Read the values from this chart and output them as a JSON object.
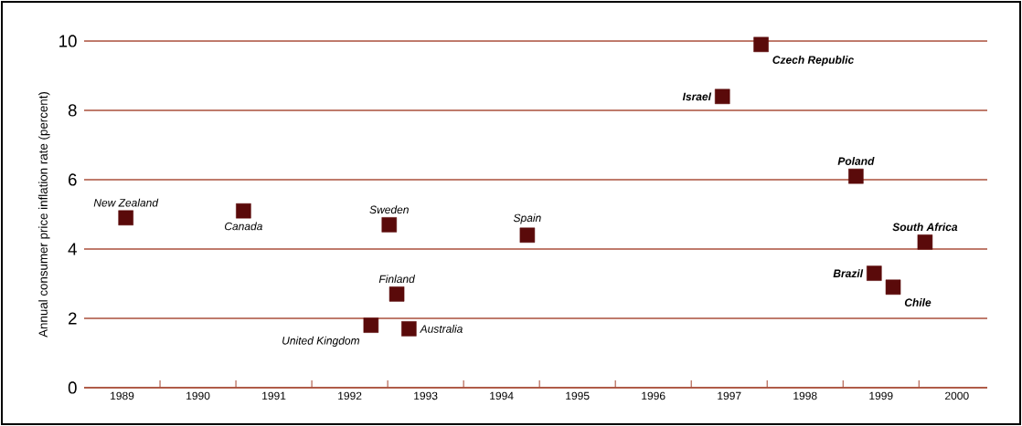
{
  "chart_data": {
    "type": "scatter",
    "ylabel": "Annual consumer price inflation rate (percent)",
    "x": [
      1989.55,
      1991.1,
      1993.02,
      1994.84,
      1993.12,
      1992.78,
      1993.28,
      1997.41,
      1997.92,
      1999.17,
      2000.08,
      1999.41,
      1999.66
    ],
    "values": [
      4.9,
      5.1,
      4.7,
      4.4,
      2.7,
      1.8,
      1.7,
      8.4,
      9.9,
      6.1,
      4.2,
      3.3,
      2.9
    ],
    "color": "#5a0a0a",
    "marker": "square",
    "grid": "y",
    "xlim": [
      1989,
      2000.9
    ],
    "ylim": [
      0,
      10
    ],
    "xticks": [
      {
        "value": 1989.5,
        "label": "1989"
      },
      {
        "value": 1990,
        "label": null
      },
      {
        "value": 1990.5,
        "label": "1990"
      },
      {
        "value": 1991,
        "label": null
      },
      {
        "value": 1991.5,
        "label": "1991"
      },
      {
        "value": 1992,
        "label": null
      },
      {
        "value": 1992.5,
        "label": "1992"
      },
      {
        "value": 1993,
        "label": null
      },
      {
        "value": 1993.5,
        "label": "1993"
      },
      {
        "value": 1994,
        "label": null
      },
      {
        "value": 1994.5,
        "label": "1994"
      },
      {
        "value": 1995,
        "label": null
      },
      {
        "value": 1995.5,
        "label": "1995"
      },
      {
        "value": 1996,
        "label": null
      },
      {
        "value": 1996.5,
        "label": "1996"
      },
      {
        "value": 1997,
        "label": null
      },
      {
        "value": 1997.5,
        "label": "1997"
      },
      {
        "value": 1998,
        "label": null
      },
      {
        "value": 1998.5,
        "label": "1998"
      },
      {
        "value": 1999,
        "label": null
      },
      {
        "value": 1999.5,
        "label": "1999"
      },
      {
        "value": 2000,
        "label": null
      },
      {
        "value": 2000.5,
        "label": "2000"
      }
    ],
    "yticks": [
      0,
      2,
      4,
      6,
      8,
      10
    ],
    "annotations": [
      {
        "text": "New Zealand",
        "x": 1989.55,
        "y": 4.9
      },
      {
        "text": "Canada",
        "x": 1991.1,
        "y": 5.1
      },
      {
        "text": "Sweden",
        "x": 1993.02,
        "y": 4.7
      },
      {
        "text": "Spain",
        "x": 1994.84,
        "y": 4.4
      },
      {
        "text": "Finland",
        "x": 1993.12,
        "y": 2.7
      },
      {
        "text": "United Kingdom",
        "x": 1992.78,
        "y": 1.8
      },
      {
        "text": "Australia",
        "x": 1993.28,
        "y": 1.7
      },
      {
        "text": "Israel",
        "x": 1997.41,
        "y": 8.4
      },
      {
        "text": "Czech Republic",
        "x": 1997.92,
        "y": 9.9
      },
      {
        "text": "Poland",
        "x": 1999.17,
        "y": 6.1
      },
      {
        "text": "South Africa",
        "x": 2000.08,
        "y": 4.2
      },
      {
        "text": "Brazil",
        "x": 1999.41,
        "y": 3.3
      },
      {
        "text": "Chile",
        "x": 1999.66,
        "y": 2.9
      }
    ]
  }
}
